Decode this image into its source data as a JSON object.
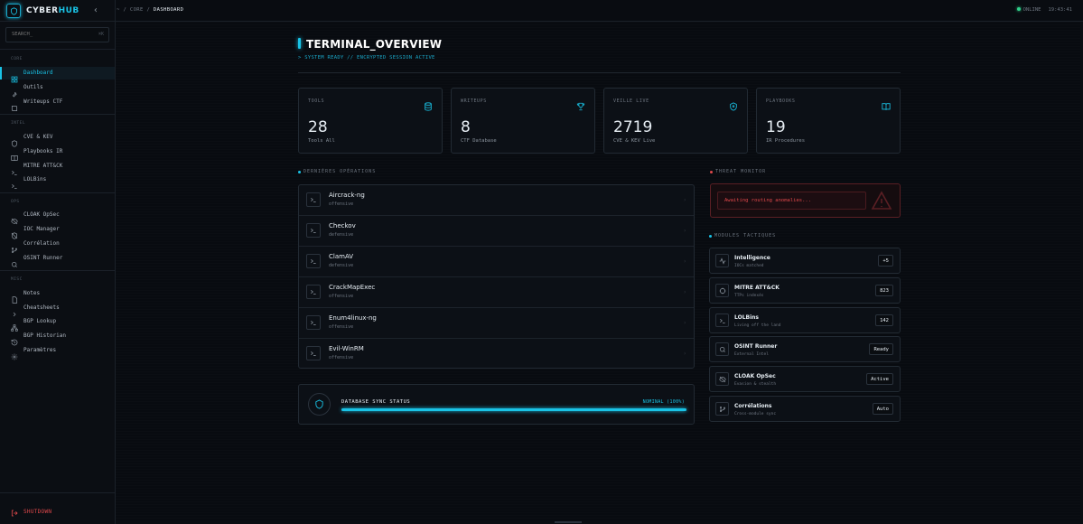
{
  "brand": {
    "name_prefix": "CYBER",
    "name_suffix": "HUB",
    "accent": "#19c3e6"
  },
  "sidebar": {
    "collapse_label": "‹",
    "search": {
      "placeholder": "SEARCH_",
      "shortcut": "⌘K"
    },
    "sections": [
      {
        "label": "CORE",
        "items": [
          {
            "label": "Dashboard",
            "icon": "grid-icon",
            "active": true
          },
          {
            "label": "Outils",
            "icon": "wrench-icon"
          },
          {
            "label": "Writeups CTF",
            "icon": "book-icon"
          }
        ]
      },
      {
        "label": "INTEL",
        "items": [
          {
            "label": "CVE & KEV",
            "icon": "shield-icon"
          },
          {
            "label": "Playbooks IR",
            "icon": "book-open-icon"
          },
          {
            "label": "MITRE ATT&CK",
            "icon": "terminal-icon"
          },
          {
            "label": "LOLBins",
            "icon": "terminal-icon"
          }
        ]
      },
      {
        "label": "OPS",
        "items": [
          {
            "label": "CLOAK OpSec",
            "icon": "eye-off-icon"
          },
          {
            "label": "IOC Manager",
            "icon": "shield-off-icon"
          },
          {
            "label": "Corrélation",
            "icon": "git-branch-icon"
          },
          {
            "label": "OSINT Runner",
            "icon": "search-icon"
          }
        ]
      },
      {
        "label": "MISC",
        "items": [
          {
            "label": "Notes",
            "icon": "file-icon"
          },
          {
            "label": "Cheatsheets",
            "icon": "chevron-right-icon"
          },
          {
            "label": "BGP Lookup",
            "icon": "network-icon"
          },
          {
            "label": "BGP Historian",
            "icon": "history-icon"
          },
          {
            "label": "Paramètres",
            "icon": "gear-icon"
          }
        ]
      }
    ],
    "shutdown_label": "SHUTDOWN"
  },
  "topbar": {
    "breadcrumb": {
      "root": "~",
      "sep": "/",
      "section": "CORE",
      "current": "DASHBOARD"
    },
    "status": "ONLINE",
    "time": "19:43:41"
  },
  "page": {
    "title": "TERMINAL_OVERVIEW",
    "subtitle": "> SYSTEM READY // ENCRYPTED SESSION ACTIVE"
  },
  "stats": [
    {
      "label": "TOOLS",
      "value": "28",
      "desc": "Tools All",
      "icon": "database-icon"
    },
    {
      "label": "WRITEUPS",
      "value": "8",
      "desc": "CTF Database",
      "icon": "trophy-icon"
    },
    {
      "label": "VEILLE LIVE",
      "value": "2719",
      "desc": "CVE & KEV Live",
      "icon": "shield-icon"
    },
    {
      "label": "PLAYBOOKS",
      "value": "19",
      "desc": "IR Procedures",
      "icon": "book-open-icon"
    }
  ],
  "operations": {
    "section_label": "DERNIÈRES OPÉRATIONS",
    "items": [
      {
        "name": "Aircrack-ng",
        "tag": "offensive"
      },
      {
        "name": "Checkov",
        "tag": "defensive"
      },
      {
        "name": "ClamAV",
        "tag": "defensive"
      },
      {
        "name": "CrackMapExec",
        "tag": "offensive"
      },
      {
        "name": "Enum4linux-ng",
        "tag": "offensive"
      },
      {
        "name": "Evil-WinRM",
        "tag": "offensive"
      }
    ]
  },
  "sync": {
    "label": "DATABASE SYNC STATUS",
    "value": "NOMINAL (100%)",
    "progress": 1.0
  },
  "threat": {
    "section_label": "THREAT MONITOR",
    "message": "Awaiting routing anomalies..."
  },
  "modules": {
    "section_label": "MODULES TACTIQUES",
    "items": [
      {
        "name": "Intelligence",
        "sub": "IOCs matched",
        "badge": "+5",
        "icon": "activity-icon"
      },
      {
        "name": "MITRE ATT&CK",
        "sub": "TTPs indexés",
        "badge": "823",
        "icon": "crosshair-icon"
      },
      {
        "name": "LOLBins",
        "sub": "Living off the land",
        "badge": "142",
        "icon": "terminal-icon"
      },
      {
        "name": "OSINT Runner",
        "sub": "External Intel",
        "badge": "Ready",
        "icon": "search-icon"
      },
      {
        "name": "CLOAK OpSec",
        "sub": "Evasion & stealth",
        "badge": "Active",
        "icon": "eye-off-icon"
      },
      {
        "name": "Corrélations",
        "sub": "Cross-module sync",
        "badge": "Auto",
        "icon": "git-branch-icon"
      }
    ]
  }
}
